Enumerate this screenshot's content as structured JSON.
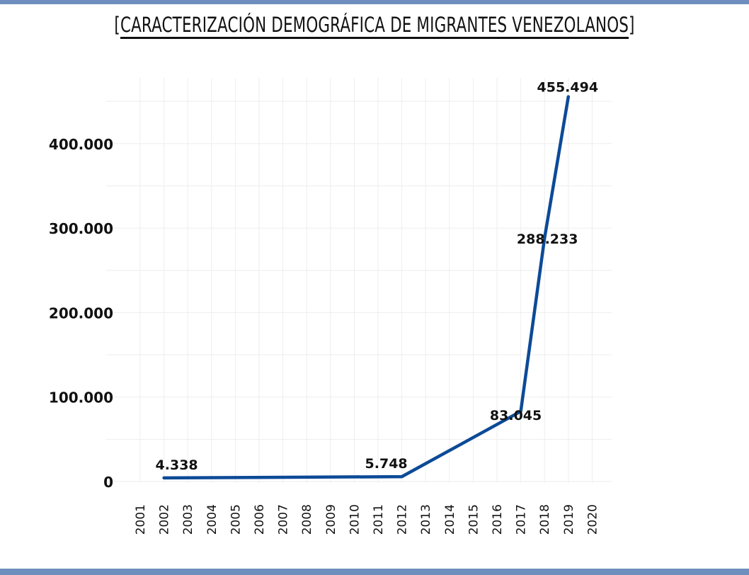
{
  "header": {
    "bracket_open": "[",
    "title": "CARACTERIZACIÓN DEMOGRÁFICA DE MIGRANTES VENEZOLANOS",
    "bracket_close": "]"
  },
  "colors": {
    "frame": "#6e8fbd",
    "line": "#0c4a97",
    "grid": "#eeeeee"
  },
  "chart_data": {
    "type": "line",
    "title": "CARACTERIZACIÓN DEMOGRÁFICA DE MIGRANTES VENEZOLANOS",
    "xlabel": "",
    "ylabel": "",
    "categories": [
      "2001",
      "2002",
      "2003",
      "2004",
      "2005",
      "2006",
      "2007",
      "2008",
      "2009",
      "2010",
      "2011",
      "2012",
      "2013",
      "2014",
      "2015",
      "2016",
      "2017",
      "2018",
      "2019",
      "2020"
    ],
    "ylim": [
      0,
      470000
    ],
    "y_ticks": [
      0,
      100000,
      200000,
      300000,
      400000
    ],
    "y_tick_labels": [
      "0",
      "100.000",
      "200.000",
      "300.000",
      "400.000"
    ],
    "grid": true,
    "legend": "none",
    "series": [
      {
        "points": [
          {
            "x": "2002",
            "y": 4338
          },
          {
            "x": "2012",
            "y": 5748
          },
          {
            "x": "2017",
            "y": 83045
          },
          {
            "x": "2018",
            "y": 288233
          },
          {
            "x": "2019",
            "y": 455494
          }
        ]
      }
    ],
    "data_labels": [
      {
        "x": "2002",
        "y": 4338,
        "text": "4.338"
      },
      {
        "x": "2012",
        "y": 5748,
        "text": "5.748"
      },
      {
        "x": "2017",
        "y": 83045,
        "text": "83.045"
      },
      {
        "x": "2018",
        "y": 288233,
        "text": "288.233"
      },
      {
        "x": "2019",
        "y": 455494,
        "text": "455.494"
      }
    ]
  }
}
